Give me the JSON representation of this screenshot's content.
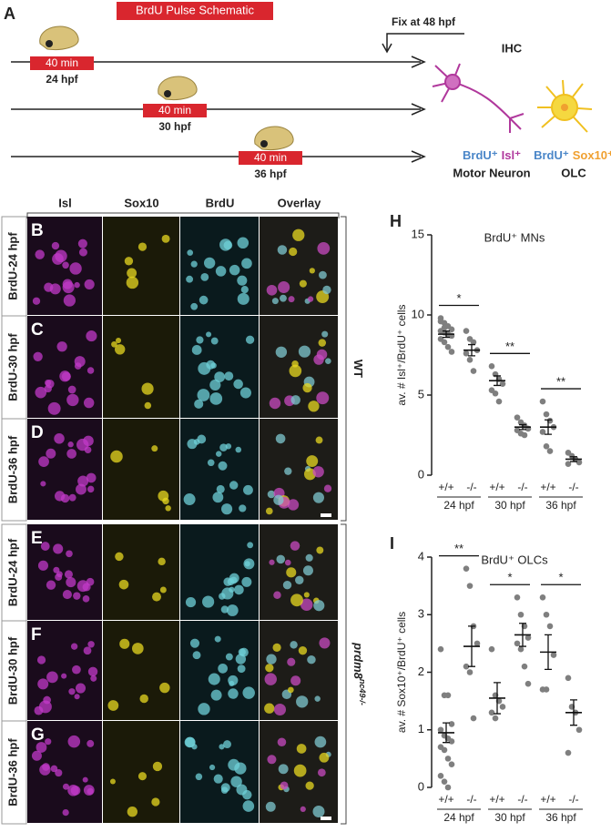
{
  "panel_a": {
    "letter": "A",
    "title": "BrdU Pulse Schematic",
    "pulses": [
      {
        "duration": "40 min",
        "time": "24 hpf"
      },
      {
        "duration": "40 min",
        "time": "30 hpf"
      },
      {
        "duration": "40 min",
        "time": "36 hpf"
      }
    ],
    "fix": "Fix at 48 hpf",
    "ihc": "IHC",
    "cell_types": [
      {
        "markers": [
          {
            "text": "BrdU⁺",
            "color": "#4a86c8"
          },
          {
            "text": "Isl⁺",
            "color": "#b0389c"
          }
        ],
        "name": "Motor Neuron"
      },
      {
        "markers": [
          {
            "text": "BrdU⁺",
            "color": "#4a86c8"
          },
          {
            "text": "Sox10⁺",
            "color": "#f0a030"
          }
        ],
        "name": "OLC"
      }
    ]
  },
  "panel_grid": {
    "headers": [
      "Isl",
      "Sox10",
      "BrdU",
      "Overlay"
    ],
    "rows": [
      {
        "letter": "B",
        "label": "BrdU-24 hpf"
      },
      {
        "letter": "C",
        "label": "BrdU-30 hpf"
      },
      {
        "letter": "D",
        "label": "BrdU-36 hpf"
      },
      {
        "letter": "E",
        "label": "BrdU-24 hpf"
      },
      {
        "letter": "F",
        "label": "BrdU-30 hpf"
      },
      {
        "letter": "G",
        "label": "BrdU-36 hpf"
      }
    ],
    "groups": [
      {
        "gene": "WT",
        "allele": ""
      },
      {
        "gene": "prdm8",
        "allele": "nc49-/-"
      }
    ]
  },
  "chart_data": [
    {
      "type": "strip",
      "letter": "H",
      "title": "BrdU⁺ MNs",
      "y_label": "av. # Isl⁺/BrdU⁺ cells",
      "categories": [
        "+/+",
        "-/-",
        "+/+",
        "-/-",
        "+/+",
        "-/-"
      ],
      "groups": [
        "24 hpf",
        "30 hpf",
        "36 hpf"
      ],
      "color": "#7f7f7f",
      "points": [
        [
          9.8,
          9.5,
          9.3,
          9.1,
          9.0,
          8.9,
          8.8,
          8.7,
          8.5,
          8.3,
          8.0,
          7.7,
          9.6,
          9.2
        ],
        [
          9.0,
          8.5,
          8.3,
          7.8,
          7.6,
          7.2,
          6.5
        ],
        [
          6.8,
          6.3,
          6.0,
          5.7,
          5.3,
          5.1,
          4.6
        ],
        [
          3.6,
          3.3,
          3.1,
          2.9,
          2.8,
          2.6,
          2.5
        ],
        [
          4.6,
          3.8,
          3.4,
          3.0,
          2.7,
          1.8,
          1.5
        ],
        [
          1.4,
          1.2,
          1.0,
          0.8,
          0.7
        ]
      ],
      "means": [
        8.8,
        7.8,
        5.9,
        3.0,
        3.0,
        1.0
      ],
      "sems": [
        0.2,
        0.35,
        0.3,
        0.15,
        0.45,
        0.15
      ],
      "significance": [
        "*",
        "**",
        "**"
      ],
      "ylim": [
        0,
        15
      ],
      "yticks": [
        0,
        5,
        10,
        15
      ]
    },
    {
      "type": "strip",
      "letter": "I",
      "title": "BrdU⁺ OLCs",
      "y_label": "av. # Sox10⁺/BrdU⁺ cells",
      "categories": [
        "+/+",
        "-/-",
        "+/+",
        "-/-",
        "+/+",
        "-/-"
      ],
      "groups": [
        "24 hpf",
        "30 hpf",
        "36 hpf"
      ],
      "color": "#7f7f7f",
      "points": [
        [
          2.4,
          1.6,
          1.6,
          1.1,
          1.0,
          0.9,
          0.85,
          0.8,
          0.7,
          0.65,
          0.5,
          0.4,
          0.2,
          0.1,
          0.0
        ],
        [
          3.8,
          3.5,
          2.8,
          2.5,
          2.1,
          2.0,
          1.2
        ],
        [
          2.4,
          1.6,
          1.5,
          1.4,
          1.3,
          1.2
        ],
        [
          3.3,
          3.0,
          2.8,
          2.6,
          2.5,
          2.4,
          2.1,
          1.8
        ],
        [
          3.3,
          3.0,
          2.8,
          2.3,
          1.7,
          1.7
        ],
        [
          1.9,
          1.4,
          1.3,
          1.0,
          0.6
        ]
      ],
      "means": [
        0.95,
        2.45,
        1.55,
        2.65,
        2.35,
        1.3
      ],
      "sems": [
        0.17,
        0.35,
        0.27,
        0.2,
        0.3,
        0.22
      ],
      "significance": [
        "**",
        "*",
        "*"
      ],
      "ylim": [
        0,
        4
      ],
      "yticks": [
        0,
        1,
        2,
        3,
        4
      ]
    }
  ]
}
